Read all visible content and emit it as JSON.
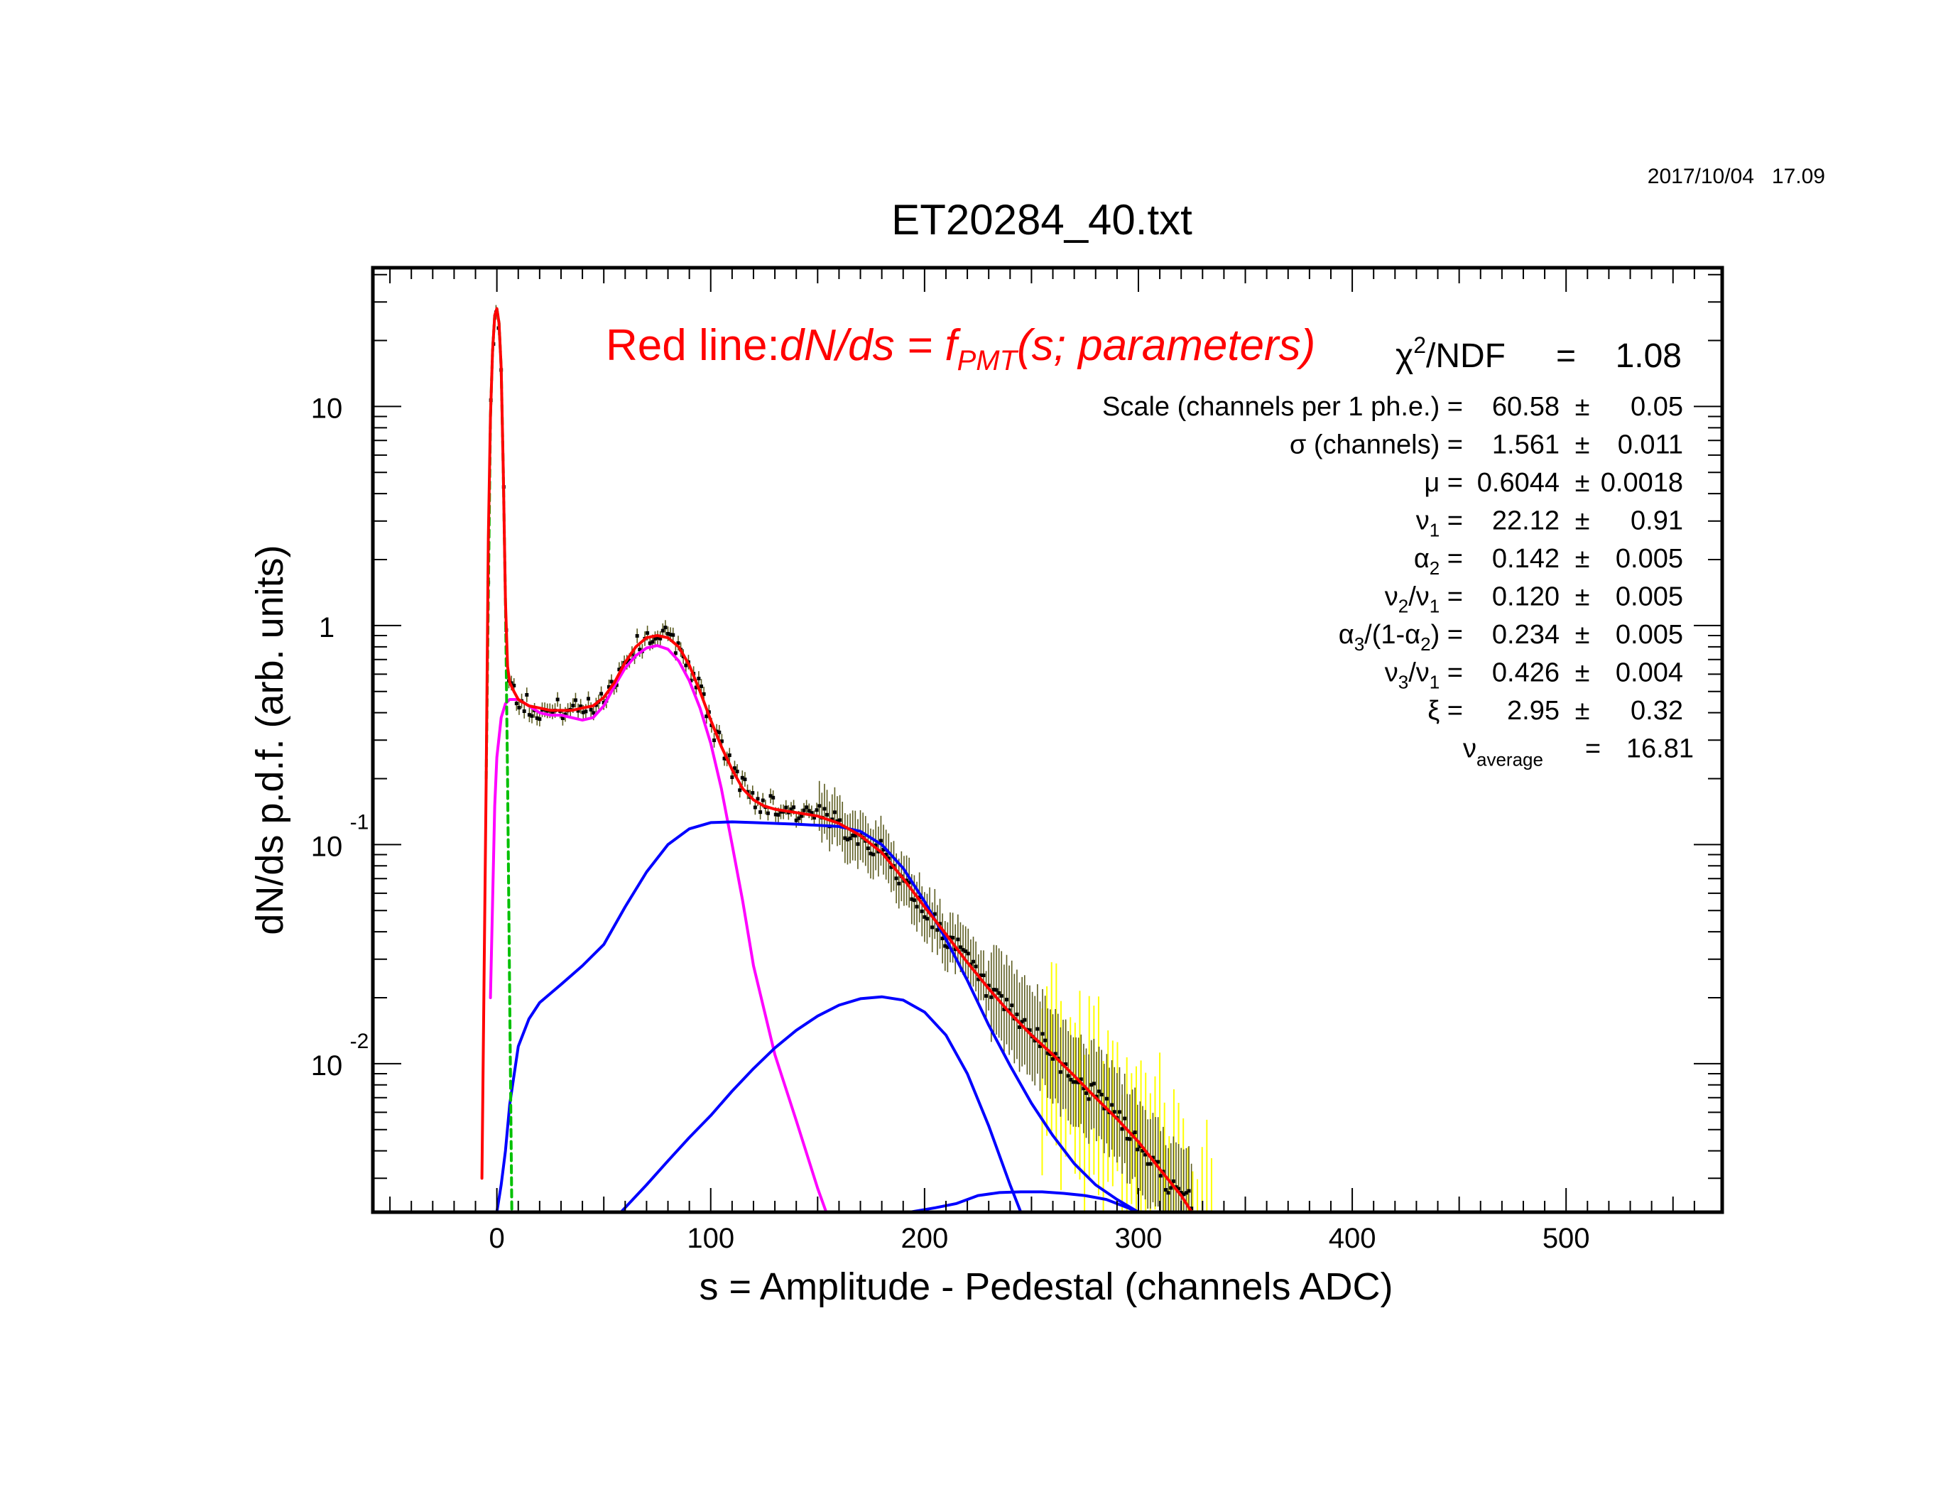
{
  "timestamp": "2017/10/04   17.09",
  "chart_data": {
    "type": "line",
    "title": "ET20284_40.txt",
    "xlabel": "s = Amplitude - Pedestal (channels ADC)",
    "ylabel": "dN/ds p.d.f. (arb. units)",
    "x_scale": "linear",
    "y_scale": "log",
    "xlim": [
      -58,
      573
    ],
    "ylim": [
      0.0021,
      43
    ],
    "x_ticks": [
      0,
      100,
      200,
      300,
      400,
      500
    ],
    "y_ticks": [
      {
        "value": 10,
        "base": "10",
        "exp": ""
      },
      {
        "value": 1,
        "base": "1",
        "exp": ""
      },
      {
        "value": 0.1,
        "base": "10",
        "exp": "-1"
      },
      {
        "value": 0.01,
        "base": "10",
        "exp": "-2"
      }
    ],
    "grid": false,
    "legend_title": {
      "prefix": "Red line:",
      "formula_a": "dN/ds = f",
      "formula_sub": "PMT",
      "formula_b": "(s; parameters)"
    },
    "fit_stats": {
      "chi2": {
        "sym": "χ",
        "sup": "2",
        "rest": "/NDF",
        "eq": "=",
        "value": "1.08"
      },
      "params": [
        {
          "label": "Scale (channels per 1 ph.e.) =",
          "value": "60.58",
          "pm": "±",
          "err": "0.05"
        },
        {
          "label": "σ (channels) =",
          "value": "1.561",
          "pm": "±",
          "err": "0.011"
        },
        {
          "label": "μ  =",
          "value": "0.6044",
          "pm": "±",
          "err": "0.0018"
        },
        {
          "label": "ν",
          "sub": "1",
          "tail": " =",
          "value": "22.12",
          "pm": "±",
          "err": "0.91"
        },
        {
          "label": "α",
          "sub": "2",
          "tail": " =",
          "value": "0.142",
          "pm": "±",
          "err": "0.005"
        },
        {
          "label": "ν",
          "sub": "2",
          "mid": "/ν",
          "sub2": "1",
          "tail": " =",
          "value": "0.120",
          "pm": "±",
          "err": "0.005"
        },
        {
          "label": "α",
          "sub": "3",
          "mid": "/(1-α",
          "sub2": "2",
          "tail": ") =",
          "value": "0.234",
          "pm": "±",
          "err": "0.005"
        },
        {
          "label": "ν",
          "sub": "3",
          "mid": "/ν",
          "sub2": "1",
          "tail": " =",
          "value": "0.426",
          "pm": "±",
          "err": "0.004"
        },
        {
          "label": "ξ  =",
          "value": "2.95",
          "pm": "±",
          "err": "0.32"
        }
      ],
      "average": {
        "sym": "ν",
        "sub": "average",
        "eq": "=",
        "value": "16.81"
      }
    },
    "series": [
      {
        "role": "total fit",
        "color": "#ff0000",
        "x": [
          -7,
          -5,
          -4,
          -3,
          -2,
          -1,
          0,
          1,
          2,
          3,
          4,
          5,
          6,
          8,
          10,
          15,
          20,
          25,
          30,
          35,
          40,
          45,
          50,
          55,
          60,
          65,
          70,
          75,
          80,
          85,
          90,
          95,
          100,
          105,
          110,
          115,
          120,
          125,
          130,
          140,
          150,
          160,
          170,
          180,
          190,
          200,
          210,
          220,
          230,
          240,
          250,
          260,
          270,
          280,
          290,
          300,
          310,
          320,
          325
        ],
        "y": [
          0.003,
          0.2,
          2.5,
          9,
          18,
          26,
          28,
          24,
          15,
          5,
          1.3,
          0.65,
          0.55,
          0.5,
          0.46,
          0.43,
          0.42,
          0.41,
          0.41,
          0.41,
          0.42,
          0.43,
          0.47,
          0.55,
          0.68,
          0.8,
          0.88,
          0.9,
          0.88,
          0.8,
          0.66,
          0.5,
          0.37,
          0.28,
          0.22,
          0.18,
          0.16,
          0.15,
          0.145,
          0.14,
          0.135,
          0.125,
          0.11,
          0.092,
          0.07,
          0.052,
          0.039,
          0.029,
          0.022,
          0.017,
          0.0135,
          0.011,
          0.0088,
          0.007,
          0.0056,
          0.0044,
          0.0033,
          0.0025,
          0.0021
        ]
      },
      {
        "role": "pedestal (dashed)",
        "color": "#00c000",
        "dashed": true,
        "x": [
          -5,
          -3,
          -2,
          -1,
          0,
          1,
          2,
          3,
          4,
          5,
          6,
          7
        ],
        "y": [
          0.2,
          9,
          18,
          26,
          28,
          24,
          15,
          5,
          1.3,
          0.2,
          0.02,
          0.002
        ]
      },
      {
        "role": "1 ph.e. + background",
        "color": "#ff00ff",
        "x": [
          -3,
          -1,
          0,
          2,
          4,
          6,
          10,
          15,
          20,
          25,
          30,
          35,
          40,
          45,
          50,
          55,
          60,
          65,
          70,
          75,
          80,
          85,
          90,
          95,
          100,
          105,
          110,
          115,
          120,
          130,
          140,
          150,
          154
        ],
        "y": [
          0.02,
          0.15,
          0.25,
          0.38,
          0.44,
          0.46,
          0.46,
          0.43,
          0.4,
          0.39,
          0.39,
          0.38,
          0.37,
          0.38,
          0.43,
          0.53,
          0.64,
          0.73,
          0.79,
          0.81,
          0.78,
          0.69,
          0.56,
          0.42,
          0.29,
          0.18,
          0.1,
          0.055,
          0.028,
          0.011,
          0.0055,
          0.0027,
          0.0021
        ]
      },
      {
        "role": "2 ph.e.",
        "color": "#0000ff",
        "x": [
          0,
          2,
          4,
          6,
          10,
          15,
          20,
          30,
          40,
          50,
          60,
          70,
          80,
          90,
          100,
          110,
          120,
          140,
          160,
          170,
          180,
          190,
          200,
          210,
          220,
          230,
          240,
          250,
          260,
          270,
          280,
          290,
          300
        ],
        "y": [
          0.0021,
          0.0028,
          0.004,
          0.0065,
          0.012,
          0.016,
          0.019,
          0.023,
          0.028,
          0.035,
          0.052,
          0.075,
          0.1,
          0.118,
          0.126,
          0.127,
          0.126,
          0.124,
          0.121,
          0.115,
          0.1,
          0.078,
          0.055,
          0.037,
          0.024,
          0.015,
          0.0098,
          0.0066,
          0.0047,
          0.0035,
          0.0028,
          0.0024,
          0.0021
        ]
      },
      {
        "role": "3 ph.e.",
        "color": "#0000ff",
        "x": [
          58,
          70,
          80,
          90,
          100,
          110,
          120,
          130,
          140,
          150,
          160,
          170,
          180,
          190,
          200,
          210,
          220,
          230,
          240,
          245
        ],
        "y": [
          0.0021,
          0.0028,
          0.0036,
          0.0046,
          0.0058,
          0.0075,
          0.0095,
          0.0118,
          0.0142,
          0.0165,
          0.0185,
          0.0198,
          0.0202,
          0.0195,
          0.0172,
          0.0135,
          0.009,
          0.0052,
          0.0028,
          0.0021
        ]
      },
      {
        "role": "4 ph.e.",
        "color": "#0000ff",
        "x": [
          193,
          205,
          215,
          225,
          235,
          245,
          255,
          265,
          275,
          285,
          295,
          300
        ],
        "y": [
          0.0021,
          0.0022,
          0.0023,
          0.0025,
          0.00258,
          0.0026,
          0.0026,
          0.00256,
          0.0025,
          0.0024,
          0.0022,
          0.0021
        ]
      }
    ],
    "measured_points": {
      "x": [
        -6,
        -4,
        -3,
        -2,
        -1,
        0,
        1,
        2,
        3,
        4,
        5,
        6,
        10,
        15,
        20,
        25,
        30,
        35,
        40,
        45,
        50,
        55,
        60,
        65,
        70,
        75,
        80,
        85,
        90,
        95,
        100,
        110,
        120,
        130,
        140,
        150,
        160,
        170,
        180,
        190,
        200,
        210,
        220,
        230,
        240,
        250,
        260,
        270,
        280,
        290,
        300,
        310,
        320
      ],
      "y": [
        0.04,
        1.5,
        9.5,
        18.5,
        25,
        27,
        23,
        14,
        5.5,
        1.4,
        0.65,
        0.56,
        0.47,
        0.43,
        0.41,
        0.4,
        0.42,
        0.41,
        0.42,
        0.43,
        0.48,
        0.56,
        0.69,
        0.8,
        0.87,
        0.92,
        0.88,
        0.8,
        0.65,
        0.51,
        0.36,
        0.22,
        0.16,
        0.15,
        0.14,
        0.136,
        0.124,
        0.108,
        0.093,
        0.068,
        0.05,
        0.038,
        0.03,
        0.021,
        0.017,
        0.0138,
        0.011,
        0.0085,
        0.0072,
        0.0058,
        0.0042,
        0.0032,
        0.0024
      ]
    },
    "noisy_region": {
      "color": "#ffff00",
      "x_range": [
        255,
        335
      ]
    }
  }
}
